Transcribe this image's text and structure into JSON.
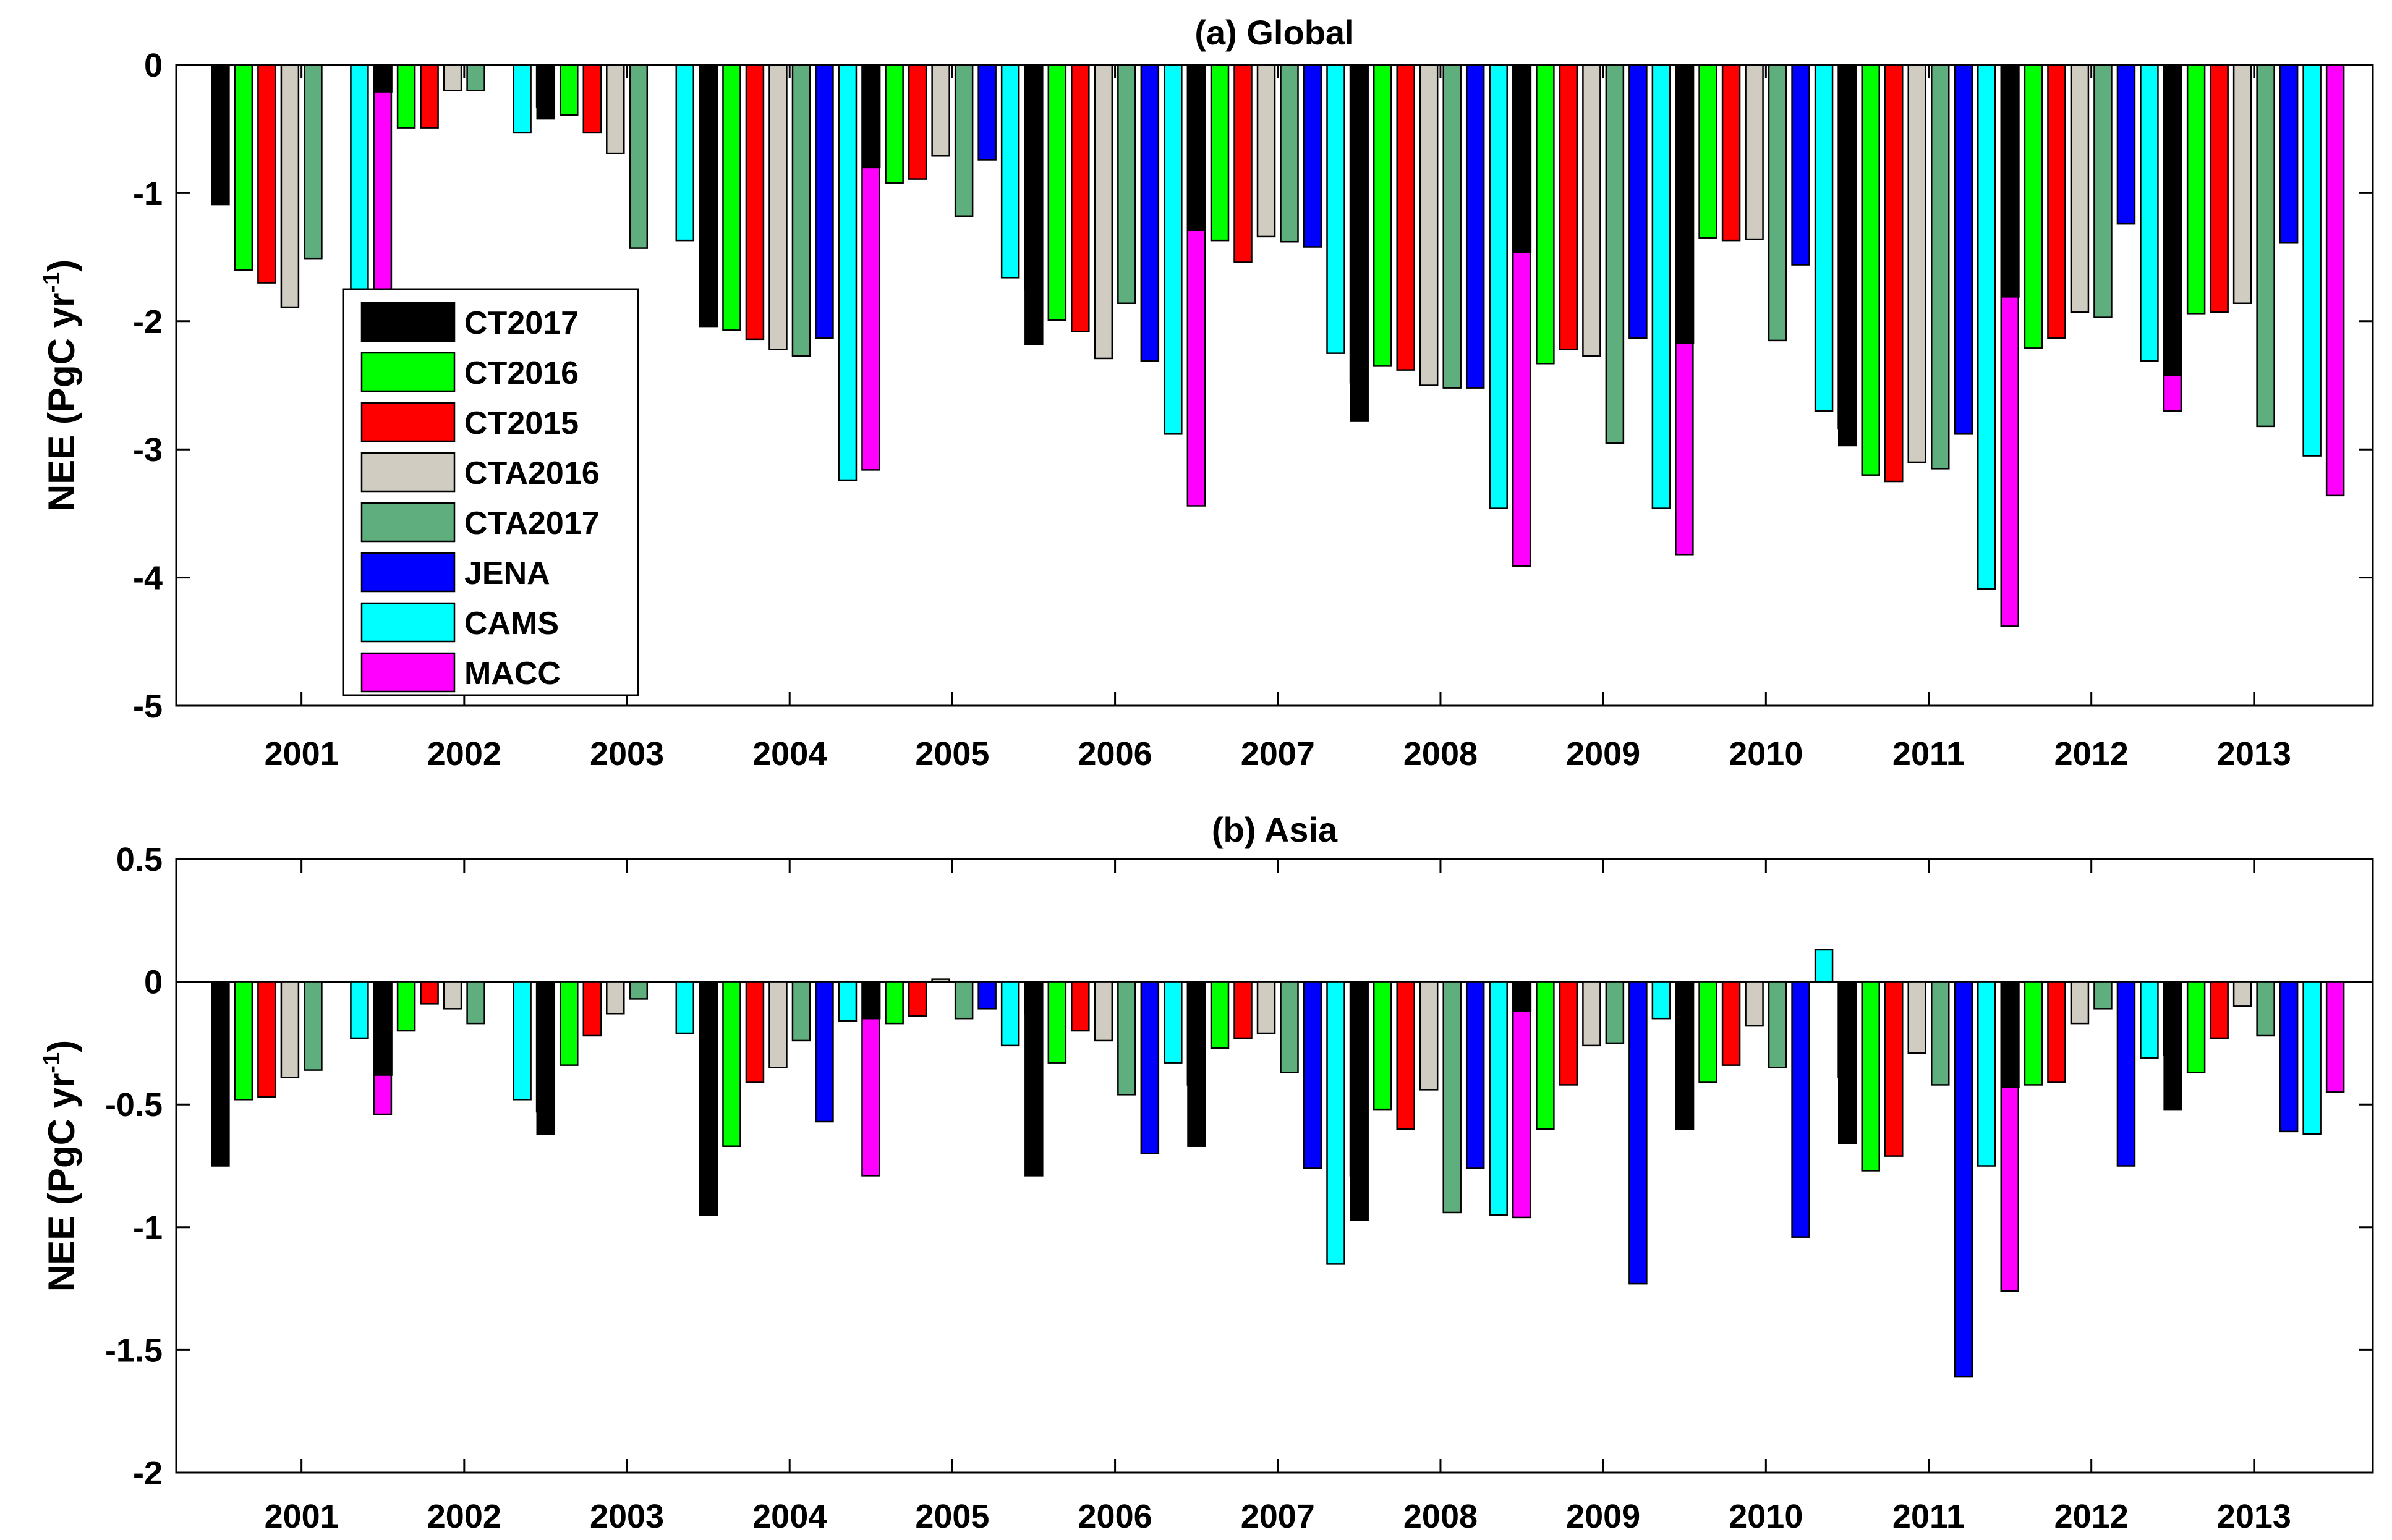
{
  "chart_data": [
    {
      "type": "bar",
      "title": "(a) Global",
      "ylabel": "NEE (PgC yr",
      "ylabel_sup": "-1",
      "ylabel_close": ")",
      "xlabel": "",
      "ylim": [
        -5,
        0
      ],
      "yticks": [
        -5,
        -4,
        -3,
        -2,
        -1,
        0
      ],
      "ytick_labels": [
        "-5",
        "-4",
        "-3",
        "-2",
        "-1",
        "0"
      ],
      "grid": false,
      "legend": "inside-left",
      "categories": [
        "2001",
        "2002",
        "2003",
        "2004",
        "2005",
        "2006",
        "2007",
        "2008",
        "2009",
        "2010",
        "2011",
        "2012",
        "2013"
      ],
      "series": [
        {
          "name": "CT2017",
          "color": "#000000",
          "values": [
            -1.09,
            -0.21,
            -0.42,
            -2.04,
            -0.8,
            -2.18,
            -1.29,
            -2.78,
            -1.46,
            -2.17,
            -2.97,
            -1.81,
            -2.42
          ]
        },
        {
          "name": "CT2016",
          "color": "#00ff00",
          "values": [
            -1.6,
            -0.49,
            -0.39,
            -2.07,
            -0.92,
            -1.99,
            -1.37,
            -2.35,
            -2.33,
            -1.35,
            -3.2,
            -2.21,
            -1.94
          ]
        },
        {
          "name": "CT2015",
          "color": "#ff0000",
          "values": [
            -1.7,
            -0.49,
            -0.53,
            -2.14,
            -0.89,
            -2.08,
            -1.54,
            -2.38,
            -2.22,
            -1.37,
            -3.25,
            -2.13,
            -1.93
          ]
        },
        {
          "name": "CTA2016",
          "color": "#d0ccc2",
          "values": [
            -1.89,
            -0.2,
            -0.69,
            -2.22,
            -0.71,
            -2.29,
            -1.34,
            -2.5,
            -2.27,
            -1.36,
            -3.1,
            -1.93,
            -1.86
          ]
        },
        {
          "name": "CTA2017",
          "color": "#5fae7e",
          "values": [
            -1.51,
            -0.2,
            -1.43,
            -2.27,
            -1.18,
            -1.86,
            -1.38,
            -2.52,
            -2.95,
            -2.15,
            -3.15,
            -1.97,
            -2.82
          ]
        },
        {
          "name": "JENA",
          "color": "#0000ff",
          "values": [
            null,
            null,
            null,
            -2.13,
            -0.74,
            -2.31,
            -1.42,
            -2.52,
            -2.13,
            -1.56,
            -2.88,
            -1.24,
            -1.39
          ]
        },
        {
          "name": "CAMS",
          "color": "#00ffff",
          "values": [
            -2.03,
            -0.53,
            -1.37,
            -3.24,
            -1.66,
            -2.88,
            -2.25,
            -3.46,
            -3.46,
            -2.7,
            -4.09,
            -2.31,
            -3.05
          ]
        },
        {
          "name": "MACC",
          "color": "#ff00ff",
          "values": [
            -1.77,
            -0.33,
            -1.37,
            -3.16,
            -1.75,
            -3.44,
            -2.48,
            -3.91,
            -3.82,
            -2.84,
            -4.38,
            -2.7,
            -3.36
          ]
        }
      ]
    },
    {
      "type": "bar",
      "title": "(b) Asia",
      "ylabel": "NEE (PgC yr",
      "ylabel_sup": "-1",
      "ylabel_close": ")",
      "xlabel": "",
      "ylim": [
        -2,
        0.5
      ],
      "yticks": [
        -2,
        -1.5,
        -1,
        -0.5,
        0,
        0.5
      ],
      "ytick_labels": [
        "-2",
        "-1.5",
        "-1",
        "-0.5",
        "0",
        "0.5"
      ],
      "grid": false,
      "legend": "none",
      "categories": [
        "2001",
        "2002",
        "2003",
        "2004",
        "2005",
        "2006",
        "2007",
        "2008",
        "2009",
        "2010",
        "2011",
        "2012",
        "2013"
      ],
      "series": [
        {
          "name": "CT2017",
          "color": "#000000",
          "values": [
            -0.75,
            -0.38,
            -0.62,
            -0.95,
            -0.15,
            -0.79,
            -0.67,
            -0.97,
            -0.12,
            -0.6,
            -0.66,
            -0.43,
            -0.52
          ]
        },
        {
          "name": "CT2016",
          "color": "#00ff00",
          "values": [
            -0.48,
            -0.2,
            -0.34,
            -0.67,
            -0.17,
            -0.33,
            -0.27,
            -0.52,
            -0.6,
            -0.41,
            -0.77,
            -0.42,
            -0.37
          ]
        },
        {
          "name": "CT2015",
          "color": "#ff0000",
          "values": [
            -0.47,
            -0.09,
            -0.22,
            -0.41,
            -0.14,
            -0.2,
            -0.23,
            -0.6,
            -0.42,
            -0.34,
            -0.71,
            -0.41,
            -0.23
          ]
        },
        {
          "name": "CTA2016",
          "color": "#d0ccc2",
          "values": [
            -0.39,
            -0.11,
            -0.13,
            -0.35,
            0.01,
            -0.24,
            -0.21,
            -0.44,
            -0.26,
            -0.18,
            -0.29,
            -0.17,
            -0.1
          ]
        },
        {
          "name": "CTA2017",
          "color": "#5fae7e",
          "values": [
            -0.36,
            -0.17,
            -0.07,
            -0.24,
            -0.15,
            -0.46,
            -0.37,
            -0.94,
            -0.25,
            -0.35,
            -0.42,
            -0.11,
            -0.22
          ]
        },
        {
          "name": "JENA",
          "color": "#0000ff",
          "values": [
            null,
            null,
            null,
            -0.57,
            -0.11,
            -0.7,
            -0.76,
            -0.76,
            -1.23,
            -1.04,
            -1.61,
            -0.75,
            -0.61
          ]
        },
        {
          "name": "CAMS",
          "color": "#00ffff",
          "values": [
            -0.23,
            -0.48,
            -0.21,
            -0.16,
            -0.26,
            -0.33,
            -1.15,
            -0.95,
            -0.15,
            0.13,
            -0.75,
            -0.31,
            -0.62
          ]
        },
        {
          "name": "MACC",
          "color": "#ff00ff",
          "values": [
            -0.54,
            -0.53,
            -0.54,
            -0.79,
            -0.13,
            -0.42,
            -0.79,
            -0.96,
            -0.5,
            -0.39,
            -1.26,
            -0.3,
            -0.45
          ]
        }
      ]
    }
  ]
}
